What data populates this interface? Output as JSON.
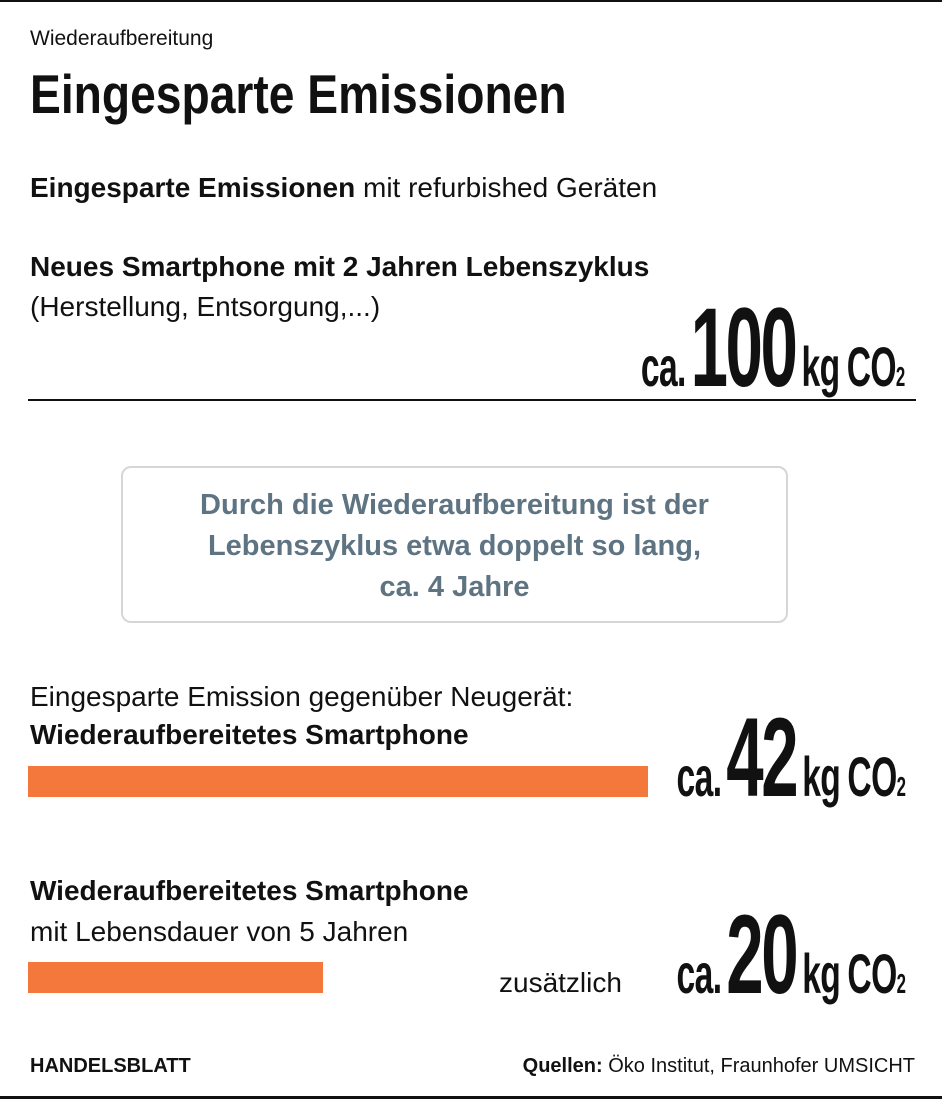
{
  "header": {
    "kicker": "Wiederaufbereitung",
    "title": "Eingesparte Emissionen"
  },
  "subtitle": {
    "bold": "Eingesparte Emissionen",
    "rest": "mit refurbished Geräten"
  },
  "new_phone": {
    "label": "Neues Smartphone mit 2 Jahren Lebenszyklus",
    "note": "(Herstellung, Entsorgung,...)",
    "prefix": "ca.",
    "value": 100,
    "unit": "kg",
    "gas": "CO",
    "gas_index": "2"
  },
  "callout": {
    "lines": [
      "Durch die Wiederaufbereitung ist der",
      "Lebenszyklus etwa doppelt so lang,",
      "ca. 4 Jahre"
    ]
  },
  "items": [
    {
      "intro": "Eingesparte Emission gegenüber Neugerät:",
      "label": "Wiederaufbereitetes Smartphone",
      "prefix": "ca.",
      "value": 42,
      "unit": "kg",
      "gas": "CO",
      "gas_index": "2",
      "color": "#f4773c"
    },
    {
      "label": "Wiederaufbereitetes Smartphone",
      "note": "mit Lebensdauer von 5 Jahren",
      "extra": "zusätzlich",
      "prefix": "ca.",
      "value": 20,
      "unit": "kg",
      "gas": "CO",
      "gas_index": "2",
      "color": "#f4773c"
    }
  ],
  "footer": {
    "brand": "HANDELSBLATT",
    "source_label": "Quellen:",
    "source": "Öko Institut, Fraunhofer UMSICHT"
  }
}
